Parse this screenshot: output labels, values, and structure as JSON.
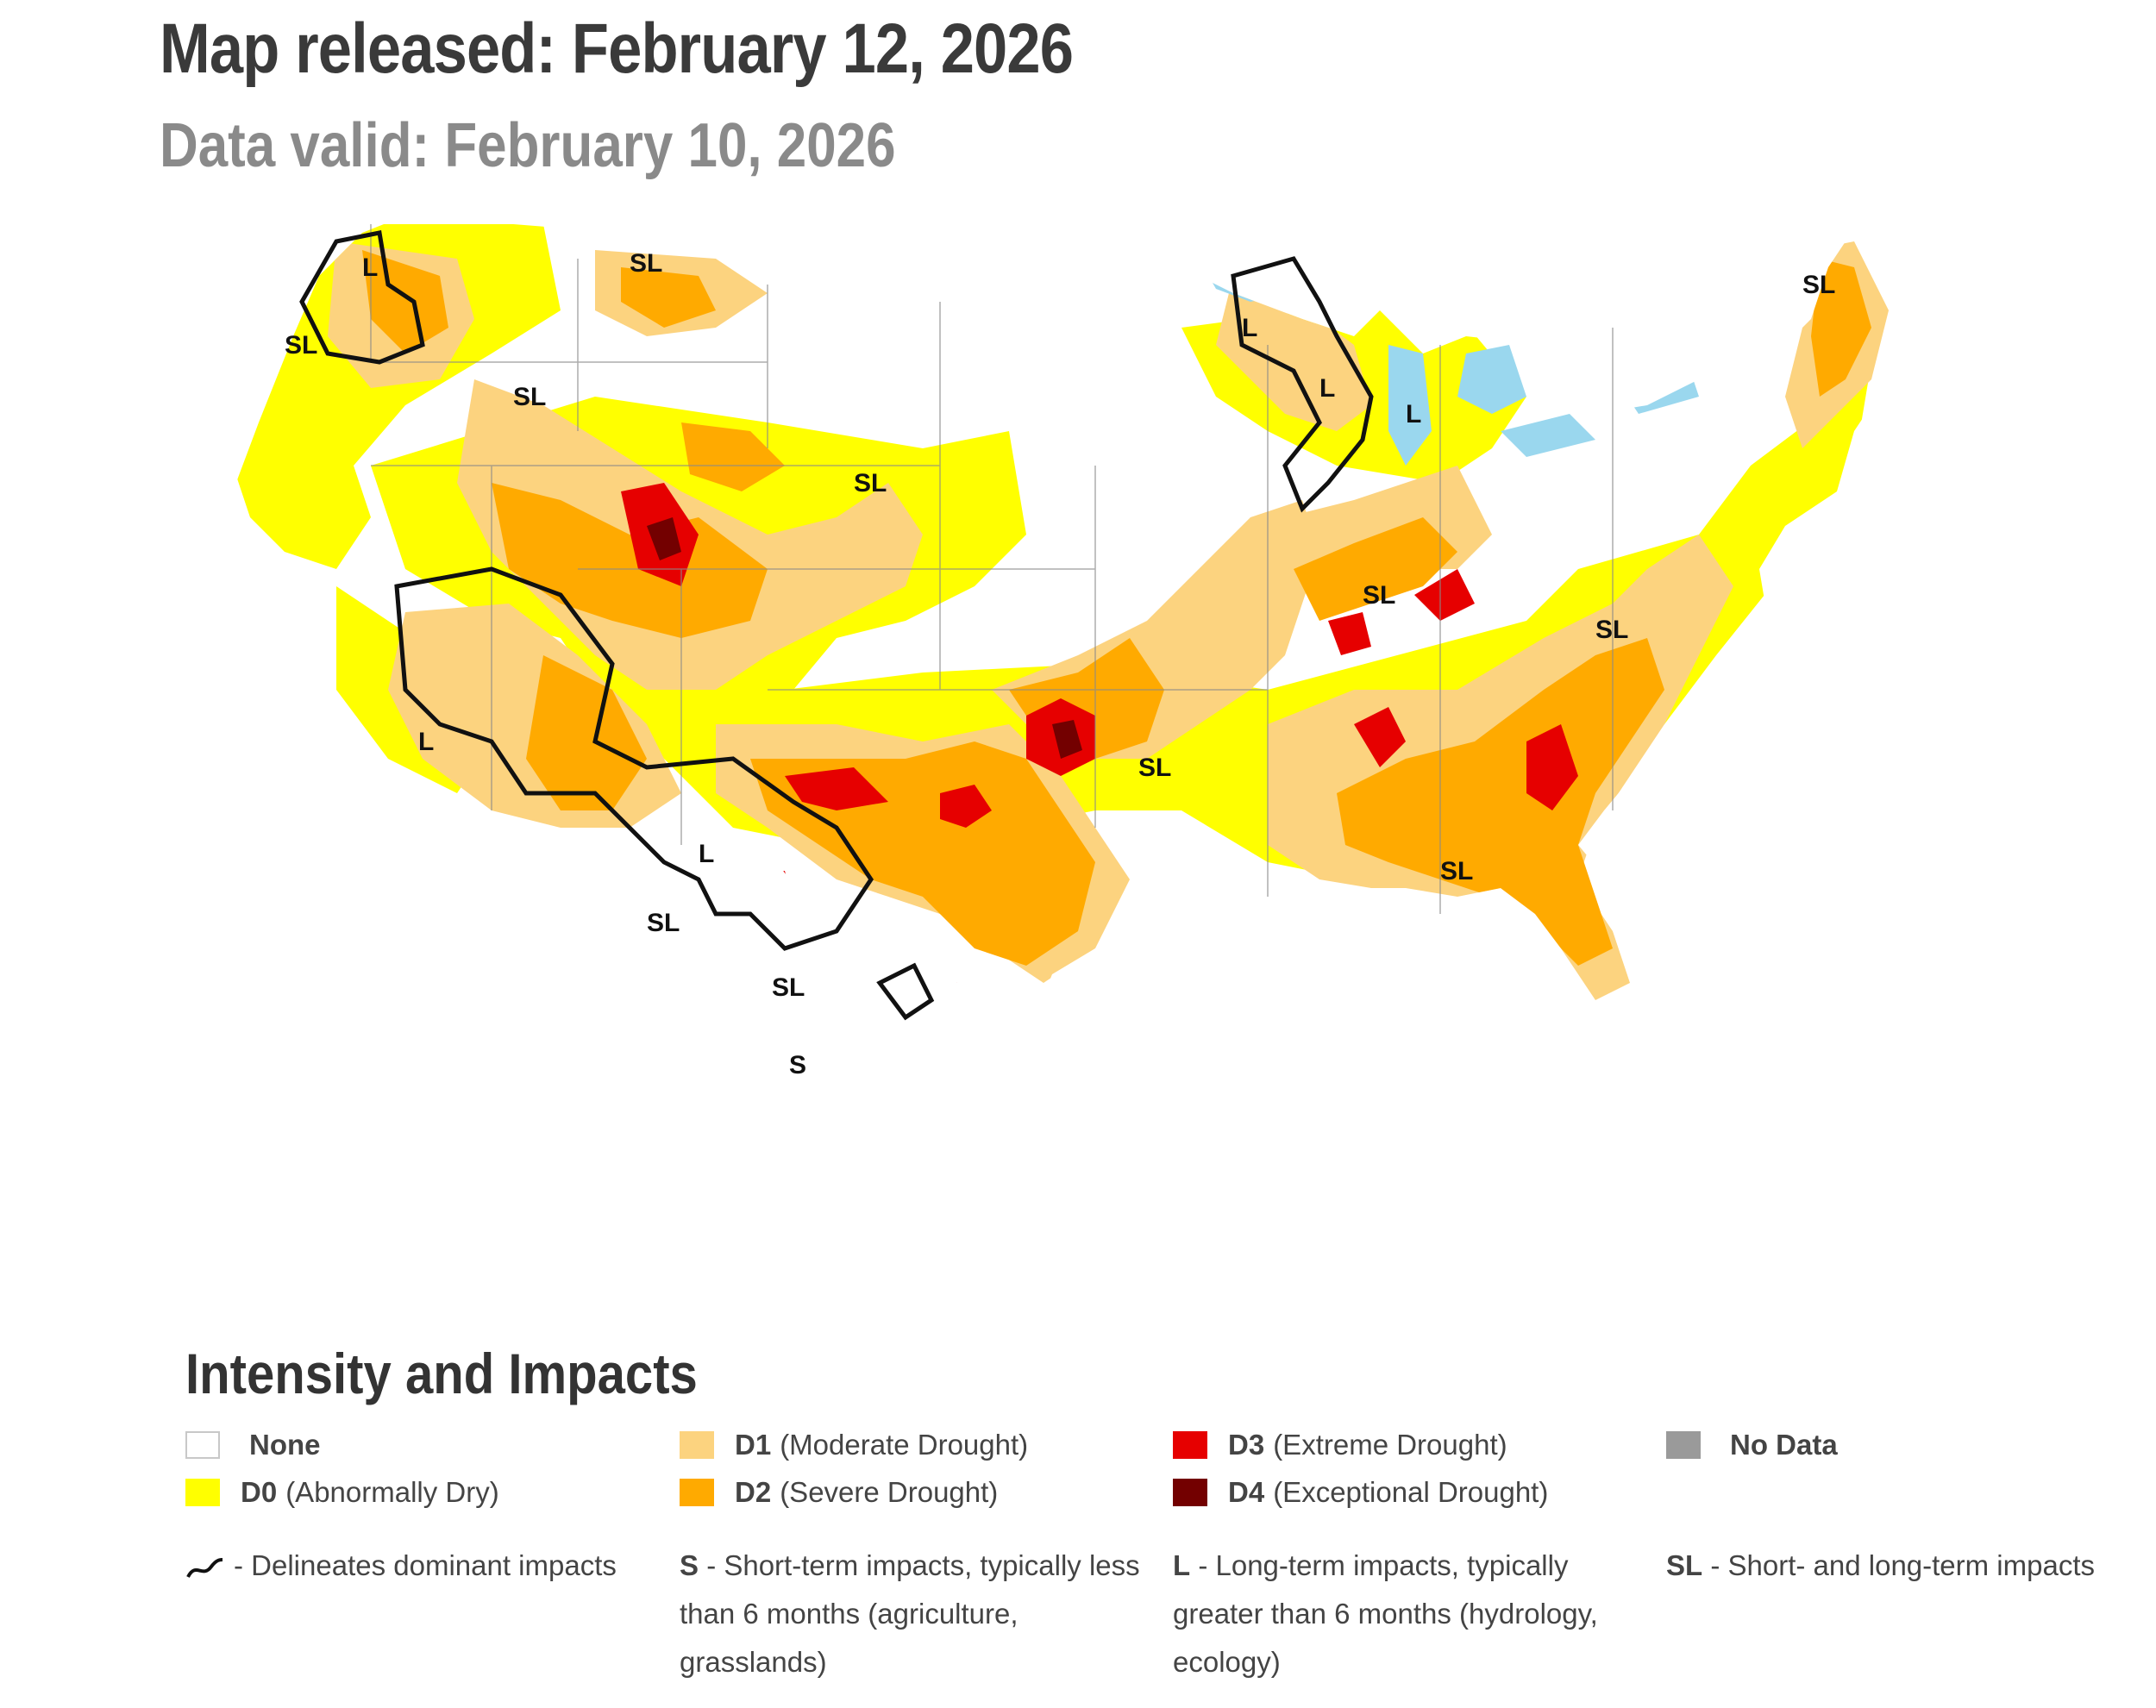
{
  "header": {
    "released": "Map released: February 12, 2026",
    "valid": "Data valid: February 10, 2026"
  },
  "colors": {
    "none": "#ffffff",
    "d0": "#ffff00",
    "d1": "#fcd37f",
    "d2": "#ffaa00",
    "d3": "#e60000",
    "d4": "#730000",
    "nodata": "#9a9a9a",
    "water": "#9ad7ee",
    "river": "#3b8ed8",
    "border": "#8a8a8a",
    "impact_line": "#111111"
  },
  "map": {
    "impact_labels": [
      "L",
      "SL",
      "SL",
      "SL",
      "SL",
      "L",
      "L",
      "L",
      "SL",
      "L",
      "SL",
      "SL",
      "SL",
      "L",
      "SL",
      "SL",
      "SL",
      "S"
    ]
  },
  "legend": {
    "title": "Intensity and Impacts",
    "items": [
      {
        "code": "",
        "label": "None"
      },
      {
        "code": "D0",
        "label": "(Abnormally Dry)"
      },
      {
        "code": "D1",
        "label": "(Moderate Drought)"
      },
      {
        "code": "D2",
        "label": "(Severe Drought)"
      },
      {
        "code": "D3",
        "label": "(Extreme Drought)"
      },
      {
        "code": "D4",
        "label": "(Exceptional Drought)"
      },
      {
        "code": "",
        "label": "No Data"
      }
    ],
    "impacts": {
      "line": "- Delineates dominant impacts",
      "s_code": "S",
      "s_text": "- Short-term impacts, typically less",
      "s_text2": "than 6 months (agriculture,",
      "s_text3": "grasslands)",
      "l_code": "L",
      "l_text": "- Long-term impacts, typically",
      "l_text2": "greater than 6 months (hydrology,",
      "l_text3": "ecology)",
      "sl_code": "SL",
      "sl_text": "- Short- and long-term impacts"
    }
  }
}
